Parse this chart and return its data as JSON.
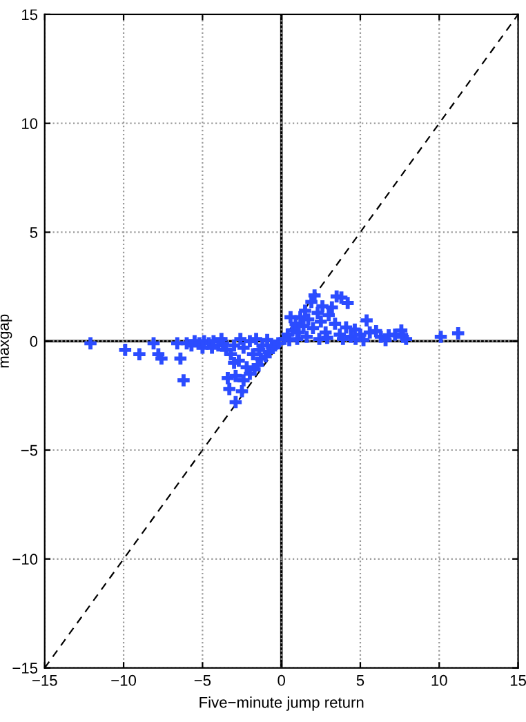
{
  "chart_data": {
    "type": "scatter",
    "xlabel": "Five−minute jump return",
    "ylabel": "maxgap",
    "xlim": [
      -15,
      15
    ],
    "ylim": [
      -15,
      15
    ],
    "xticks": [
      {
        "value": -15,
        "label": "−15"
      },
      {
        "value": -10,
        "label": "−10"
      },
      {
        "value": -5,
        "label": "−5"
      },
      0,
      5,
      10,
      15
    ],
    "yticks": [
      {
        "value": -15,
        "label": "−15"
      },
      {
        "value": -10,
        "label": "−10"
      },
      {
        "value": -5,
        "label": "−5"
      },
      0,
      5,
      10,
      15
    ],
    "grid": true,
    "marker": "cross",
    "series": [
      {
        "color": "#2b4cff",
        "x": [
          -12.1,
          -9.9,
          -9.0,
          -8.1,
          -7.8,
          -7.6,
          -6.6,
          -6.4,
          -6.2,
          -6.0,
          -5.7,
          -5.5,
          -5.2,
          -4.9,
          -4.6,
          -4.3,
          -4.0,
          -3.7,
          -3.5,
          -3.4,
          -3.3,
          -3.2,
          -3.0,
          -2.9,
          -2.9,
          -2.7,
          -2.5,
          -2.4,
          -2.2,
          -2.0,
          -1.8,
          -1.7,
          -1.5,
          -1.3,
          -1.2,
          -1.0,
          -0.8,
          -0.6,
          -0.4,
          -0.2,
          -3.8,
          -2.6,
          -1.6,
          -0.9,
          -5.0,
          -4.4,
          -2.0,
          -1.4,
          -3.0,
          -2.4,
          0.2,
          0.4,
          0.58,
          0.7,
          0.9,
          1.1,
          1.2,
          1.4,
          1.5,
          1.7,
          1.9,
          2.1,
          2.0,
          2.3,
          2.5,
          2.6,
          2.8,
          3.0,
          3.2,
          3.5,
          3.8,
          4.2,
          3.4,
          3.7,
          4.1,
          4.4,
          4.65,
          5.0,
          5.4,
          5.6,
          6.0,
          6.3,
          6.8,
          7.2,
          7.6,
          7.7,
          10.1,
          11.2,
          1.0,
          2.4,
          3.9,
          5.2,
          6.6,
          7.9,
          0.5,
          1.6,
          2.9,
          4.7
        ],
        "values": [
          -0.1,
          -0.4,
          -0.6,
          -0.1,
          -0.6,
          -0.8,
          -0.1,
          -0.8,
          -1.8,
          -0.1,
          -0.2,
          0.0,
          -0.1,
          0.0,
          -0.1,
          0.0,
          -0.2,
          -0.1,
          -0.4,
          -1.7,
          -2.2,
          -0.6,
          -0.2,
          -1.6,
          -2.8,
          -0.9,
          -2.3,
          -0.3,
          -1.2,
          -1.5,
          -0.6,
          -1.3,
          -1.1,
          -0.8,
          -0.2,
          -0.7,
          -0.5,
          -0.3,
          -0.2,
          -0.1,
          0.1,
          0.1,
          0.1,
          0.05,
          -0.3,
          -0.3,
          0.0,
          -0.4,
          -1.0,
          -1.8,
          0.1,
          0.3,
          1.1,
          0.5,
          0.8,
          0.4,
          1.1,
          0.7,
          1.4,
          1.0,
          1.8,
          2.1,
          0.6,
          1.3,
          0.9,
          1.6,
          0.4,
          1.2,
          1.55,
          2.05,
          2.0,
          1.75,
          0.8,
          0.3,
          0.63,
          0.2,
          0.53,
          0.3,
          0.95,
          0.4,
          0.46,
          0.2,
          0.27,
          0.3,
          0.49,
          0.2,
          0.2,
          0.36,
          0.1,
          0.1,
          0.1,
          0.05,
          0.05,
          0.1,
          0.05,
          0.2,
          0.15,
          0.1
        ]
      },
      {
        "type": "line",
        "color": "#000000",
        "line_style": "dashed",
        "marker": "none",
        "x": [
          -15,
          15
        ],
        "values": [
          -15,
          15
        ]
      },
      {
        "type": "line",
        "color": "#000000",
        "line_style": "solid",
        "marker": "none",
        "x": [
          0,
          0,
          0
        ],
        "values": [
          -15,
          0,
          15
        ]
      },
      {
        "type": "line",
        "color": "#000000",
        "line_style": "solid",
        "marker": "none",
        "x": [
          -15,
          15
        ],
        "values": [
          0,
          0
        ]
      }
    ]
  }
}
